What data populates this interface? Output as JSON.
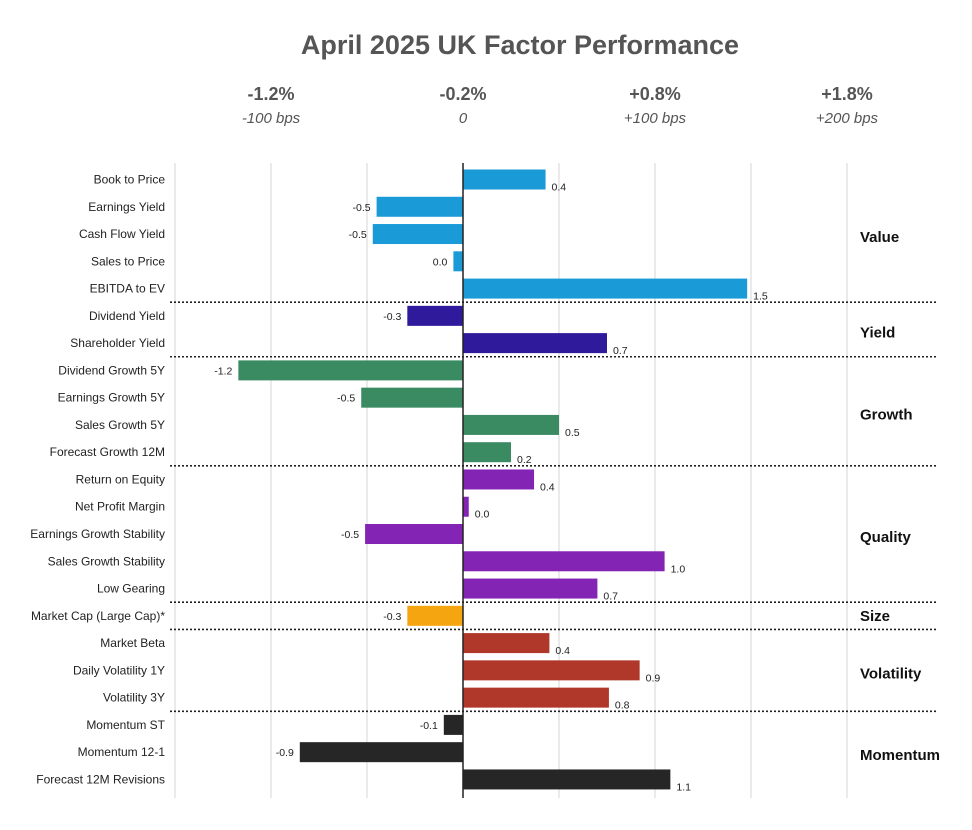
{
  "chart_data": {
    "type": "bar",
    "orientation": "horizontal",
    "title": "April 2025 UK Factor Performance",
    "xlim": [
      -1.5,
      2.0
    ],
    "top_axis": [
      {
        "value": -1.0,
        "pct": "-1.2%",
        "bps": "-100 bps"
      },
      {
        "value": 0.0,
        "pct": "-0.2%",
        "bps": "0"
      },
      {
        "value": 1.0,
        "pct": "+0.8%",
        "bps": "+100 bps"
      },
      {
        "value": 2.0,
        "pct": "+1.8%",
        "bps": "+200 bps"
      }
    ],
    "categories": [
      "Book to Price",
      "Earnings Yield",
      "Cash Flow Yield",
      "Sales to Price",
      "EBITDA to EV",
      "Dividend Yield",
      "Shareholder Yield",
      "Dividend Growth 5Y",
      "Earnings Growth 5Y",
      "Sales Growth 5Y",
      "Forecast Growth 12M",
      "Return on Equity",
      "Net Profit Margin",
      "Earnings Growth Stability",
      "Sales Growth Stability",
      "Low Gearing",
      "Market Cap (Large Cap)*",
      "Market Beta",
      "Daily Volatility 1Y",
      "Volatility 3Y",
      "Momentum ST",
      "Momentum 12-1",
      "Forecast 12M Revisions"
    ],
    "values": [
      0.43,
      -0.45,
      -0.47,
      -0.05,
      1.48,
      -0.29,
      0.75,
      -1.17,
      -0.53,
      0.5,
      0.25,
      0.37,
      0.03,
      -0.51,
      1.05,
      0.7,
      -0.29,
      0.45,
      0.92,
      0.76,
      -0.1,
      -0.85,
      1.08
    ],
    "value_labels": [
      "0.4",
      "-0.5",
      "-0.5",
      "0.0",
      "1.5",
      "-0.3",
      "0.7",
      "-1.2",
      "-0.5",
      "0.5",
      "0.2",
      "0.4",
      "0.0",
      "-0.5",
      "1.0",
      "0.7",
      "-0.3",
      "0.4",
      "0.9",
      "0.8",
      "-0.1",
      "-0.9",
      "1.1"
    ],
    "groups": [
      {
        "name": "Value",
        "start": 0,
        "end": 4,
        "color": "#1a9ad6"
      },
      {
        "name": "Yield",
        "start": 5,
        "end": 6,
        "color": "#2e1a9a"
      },
      {
        "name": "Growth",
        "start": 7,
        "end": 10,
        "color": "#3a8a62"
      },
      {
        "name": "Quality",
        "start": 11,
        "end": 15,
        "color": "#8424b4"
      },
      {
        "name": "Size",
        "start": 16,
        "end": 16,
        "color": "#f5a50f"
      },
      {
        "name": "Volatility",
        "start": 17,
        "end": 19,
        "color": "#b0382a"
      },
      {
        "name": "Momentum",
        "start": 20,
        "end": 22,
        "color": "#262626"
      }
    ],
    "gridlines": [
      -1.5,
      -1.0,
      -0.5,
      0.5,
      1.0,
      1.5,
      2.0
    ]
  }
}
